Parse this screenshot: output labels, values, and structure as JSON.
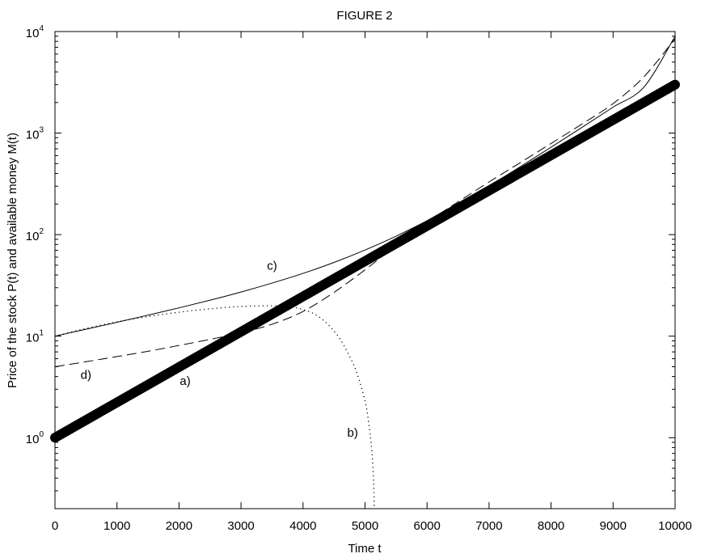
{
  "chart_data": {
    "type": "line",
    "title": "FIGURE 2",
    "xlabel": "Time t",
    "ylabel": "Price of the stock P(t) and available money M(t)",
    "x_scale": "linear",
    "y_scale": "log",
    "xlim": [
      0,
      10000
    ],
    "ylim": [
      0.2,
      10000
    ],
    "x_ticks": [
      0,
      1000,
      2000,
      3000,
      4000,
      5000,
      6000,
      7000,
      8000,
      9000,
      10000
    ],
    "x_tick_labels": [
      "0",
      "1000",
      "2000",
      "3000",
      "4000",
      "5000",
      "6000",
      "7000",
      "8000",
      "9000",
      "10000"
    ],
    "y_ticks": [
      1,
      10,
      100,
      1000,
      10000
    ],
    "y_tick_labels": [
      {
        "base": "10",
        "exp": "0"
      },
      {
        "base": "10",
        "exp": "1"
      },
      {
        "base": "10",
        "exp": "2"
      },
      {
        "base": "10",
        "exp": "3"
      },
      {
        "base": "10",
        "exp": "4"
      }
    ],
    "grid": false,
    "series": [
      {
        "name": "a)",
        "style": "thick-solid",
        "x": [
          0,
          10000
        ],
        "y": [
          1,
          3000
        ]
      },
      {
        "name": "b)",
        "style": "dotted",
        "x": [
          0,
          500,
          1000,
          1500,
          2000,
          2500,
          3000,
          3500,
          3800,
          4000,
          4200,
          4400,
          4600,
          4800,
          4900,
          5000,
          5050,
          5100,
          5120,
          5140,
          5150
        ],
        "y": [
          10,
          11.9,
          13.8,
          15.6,
          17.2,
          18.6,
          19.6,
          19.9,
          19.4,
          18.3,
          16.3,
          13.1,
          9.3,
          5.5,
          3.8,
          2.3,
          1.55,
          0.85,
          0.6,
          0.35,
          0.2
        ]
      },
      {
        "name": "c)",
        "style": "solid",
        "x": [
          0,
          500,
          1000,
          1500,
          2000,
          2500,
          3000,
          3500,
          4000,
          4500,
          5000,
          5500,
          6000,
          6500,
          7000,
          7500,
          8000,
          8500,
          9000,
          9500,
          10000
        ],
        "y": [
          10,
          11.7,
          13.7,
          16.1,
          19,
          22.6,
          27.2,
          33.3,
          41.5,
          53.2,
          70.5,
          96.5,
          137,
          200,
          302,
          465,
          725,
          1140,
          1800,
          2850,
          9000
        ]
      },
      {
        "name": "d)",
        "style": "dashed",
        "x": [
          0,
          500,
          1000,
          1500,
          2000,
          2500,
          3000,
          3500,
          4000,
          4500,
          5000,
          5500,
          6000,
          6500,
          7000,
          7500,
          8000,
          8500,
          9000,
          9500,
          10000
        ],
        "y": [
          5,
          5.6,
          6.3,
          7.1,
          8.1,
          9.3,
          10.8,
          13.1,
          17.5,
          27,
          45,
          78,
          132,
          210,
          330,
          510,
          790,
          1230,
          1950,
          3600,
          8500
        ]
      }
    ],
    "annotations": [
      {
        "text": "a)",
        "x": 2100,
        "y": 3.3
      },
      {
        "text": "b)",
        "x": 4800,
        "y": 1.02
      },
      {
        "text": "c)",
        "x": 3500,
        "y": 45
      },
      {
        "text": "d)",
        "x": 500,
        "y": 3.8
      }
    ]
  }
}
